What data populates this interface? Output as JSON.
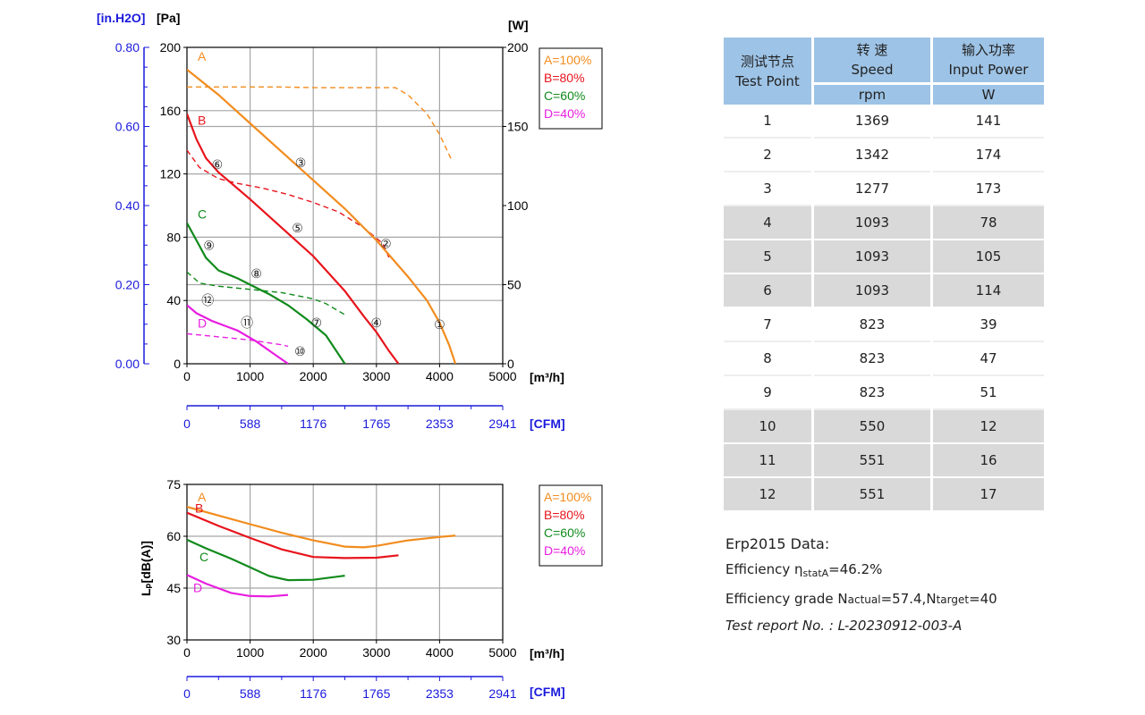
{
  "chart_data": [
    {
      "type": "line",
      "title": "",
      "xlabel": "[m³/h]",
      "x_ticks": [
        "0",
        "1000",
        "2000",
        "3000",
        "4000",
        "5000"
      ],
      "xlim": [
        0,
        5000
      ],
      "x2label": "[CFM]",
      "x2_ticks": [
        "0",
        "588",
        "1176",
        "1765",
        "2353",
        "2941"
      ],
      "ylabel_left": "[Pa]",
      "y_ticks": [
        "0",
        "40",
        "80",
        "120",
        "160",
        "200"
      ],
      "ylim": [
        0,
        200
      ],
      "ylabel_left2": "[in.H2O]",
      "y2_ticks": [
        "0.00",
        "0.20",
        "0.40",
        "0.60",
        "0.80"
      ],
      "ylabel_right": "[W]",
      "yr_ticks": [
        "0",
        "50",
        "100",
        "150",
        "200"
      ],
      "yr_lim": [
        0,
        200
      ],
      "grid": true,
      "legend_position": "top-right",
      "legend": [
        "A=100%",
        "B=80%",
        "C=60%",
        "D=40%"
      ],
      "series": [
        {
          "name": "A=100%",
          "label": "A",
          "color": "#f28c1e",
          "kind": "pressure",
          "x": [
            0,
            500,
            1000,
            1500,
            2000,
            2500,
            3000,
            3500,
            3800,
            4000,
            4150,
            4250
          ],
          "y": [
            186,
            170,
            152,
            134,
            116,
            98,
            78,
            55,
            40,
            26,
            12,
            0
          ]
        },
        {
          "name": "B=80%",
          "label": "B",
          "color": "#e8141c",
          "kind": "pressure",
          "x": [
            0,
            150,
            300,
            500,
            1000,
            1500,
            2000,
            2500,
            2800,
            3000,
            3200,
            3350
          ],
          "y": [
            158,
            142,
            130,
            121,
            104,
            86,
            68,
            46,
            30,
            20,
            8,
            0
          ]
        },
        {
          "name": "C=60%",
          "label": "C",
          "color": "#118a1c",
          "kind": "pressure",
          "x": [
            0,
            150,
            300,
            500,
            800,
            1000,
            1300,
            1600,
            1900,
            2200,
            2500
          ],
          "y": [
            89,
            78,
            67,
            59,
            54,
            50,
            44,
            37,
            28,
            18,
            0
          ]
        },
        {
          "name": "D=40%",
          "label": "D",
          "color": "#e81ee0",
          "kind": "pressure",
          "x": [
            0,
            150,
            400,
            800,
            1100,
            1350,
            1600
          ],
          "y": [
            37,
            32,
            27,
            21,
            14,
            7,
            0
          ]
        },
        {
          "name": "A power",
          "color": "#f28c1e",
          "kind": "power",
          "x": [
            0,
            500,
            1000,
            1500,
            2000,
            2500,
            3000,
            3300,
            3500,
            3800,
            4000,
            4200
          ],
          "y": [
            175,
            175,
            175,
            175,
            174.5,
            174.5,
            174.5,
            174.5,
            170,
            158,
            145,
            128
          ]
        },
        {
          "name": "B power",
          "color": "#e8141c",
          "kind": "power",
          "x": [
            0,
            200,
            500,
            800,
            1200,
            1600,
            2000,
            2400,
            2800,
            3100,
            3200
          ],
          "y": [
            135,
            124,
            117,
            114,
            111,
            107,
            102,
            96,
            86,
            76,
            67
          ]
        },
        {
          "name": "C power",
          "color": "#118a1c",
          "kind": "power",
          "x": [
            0,
            200,
            500,
            1000,
            1500,
            2000,
            2200,
            2500
          ],
          "y": [
            58,
            51,
            49,
            47,
            45,
            41,
            38,
            31
          ]
        },
        {
          "name": "D power",
          "color": "#e81ee0",
          "kind": "power",
          "x": [
            0,
            500,
            1000,
            1500,
            1600
          ],
          "y": [
            19,
            17,
            15,
            12,
            11
          ]
        }
      ],
      "points": [
        {
          "label": "①",
          "x": 4000,
          "y": 25
        },
        {
          "label": "②",
          "x": 3150,
          "y": 76
        },
        {
          "label": "③",
          "x": 1800,
          "y": 127
        },
        {
          "label": "④",
          "x": 3000,
          "y": 26
        },
        {
          "label": "⑤",
          "x": 1750,
          "y": 86
        },
        {
          "label": "⑥",
          "x": 480,
          "y": 126
        },
        {
          "label": "⑦",
          "x": 2050,
          "y": 26
        },
        {
          "label": "⑧",
          "x": 1100,
          "y": 57
        },
        {
          "label": "⑨",
          "x": 350,
          "y": 75
        },
        {
          "label": "⑩",
          "x": 1790,
          "y": 8
        },
        {
          "label": "⑪",
          "x": 950,
          "y": 26
        },
        {
          "label": "⑫",
          "x": 330,
          "y": 40
        }
      ]
    },
    {
      "type": "line",
      "title": "",
      "xlabel": "[m³/h]",
      "x_ticks": [
        "0",
        "1000",
        "2000",
        "3000",
        "4000",
        "5000"
      ],
      "xlim": [
        0,
        5000
      ],
      "x2label": "[CFM]",
      "x2_ticks": [
        "0",
        "588",
        "1176",
        "1765",
        "2353",
        "2941"
      ],
      "ylabel": "Lₚ[dB(A)]",
      "y_ticks": [
        "30",
        "45",
        "60",
        "75"
      ],
      "ylim": [
        30,
        75
      ],
      "grid": true,
      "legend_position": "top-right",
      "legend": [
        "A=100%",
        "B=80%",
        "C=60%",
        "D=40%"
      ],
      "series": [
        {
          "name": "A=100%",
          "label": "A",
          "color": "#f28c1e",
          "x": [
            0,
            500,
            1000,
            1500,
            2000,
            2500,
            2800,
            3000,
            3500,
            4000,
            4250
          ],
          "y": [
            68.5,
            66,
            63.5,
            61,
            58.8,
            57,
            56.8,
            57.2,
            58.8,
            59.8,
            60.2
          ]
        },
        {
          "name": "B=80%",
          "label": "B",
          "color": "#e8141c",
          "x": [
            0,
            500,
            1000,
            1500,
            2000,
            2500,
            3000,
            3350
          ],
          "y": [
            66.8,
            63,
            59.5,
            56.2,
            54,
            53.7,
            53.8,
            54.5
          ]
        },
        {
          "name": "C=60%",
          "label": "C",
          "color": "#118a1c",
          "x": [
            0,
            300,
            700,
            1000,
            1300,
            1600,
            2000,
            2500
          ],
          "y": [
            59,
            56.5,
            53.5,
            51,
            48.5,
            47.3,
            47.4,
            48.6
          ]
        },
        {
          "name": "D=40%",
          "label": "D",
          "color": "#e81ee0",
          "x": [
            0,
            300,
            700,
            1000,
            1300,
            1600
          ],
          "y": [
            48.8,
            46.3,
            43.6,
            42.7,
            42.6,
            43
          ]
        }
      ]
    }
  ],
  "table": {
    "headers": [
      {
        "cn": "测试节点",
        "en": "Test Point",
        "unit": ""
      },
      {
        "cn": "转 速",
        "en": "Speed",
        "unit": "rpm"
      },
      {
        "cn": "输入功率",
        "en": "Input Power",
        "unit": "W"
      }
    ],
    "rows": [
      {
        "point": "1",
        "speed": "1369",
        "power": "141"
      },
      {
        "point": "2",
        "speed": "1342",
        "power": "174"
      },
      {
        "point": "3",
        "speed": "1277",
        "power": "173"
      },
      {
        "point": "4",
        "speed": "1093",
        "power": "78"
      },
      {
        "point": "5",
        "speed": "1093",
        "power": "105"
      },
      {
        "point": "6",
        "speed": "1093",
        "power": "114"
      },
      {
        "point": "7",
        "speed": "823",
        "power": "39"
      },
      {
        "point": "8",
        "speed": "823",
        "power": "47"
      },
      {
        "point": "9",
        "speed": "823",
        "power": "51"
      },
      {
        "point": "10",
        "speed": "550",
        "power": "12"
      },
      {
        "point": "11",
        "speed": "551",
        "power": "16"
      },
      {
        "point": "12",
        "speed": "551",
        "power": "17"
      }
    ]
  },
  "erp": {
    "title": "Erp2015  Data:",
    "eff_label": "Efficiency η",
    "eff_sub": "statA",
    "eff_value": "=46.2%",
    "grade_label": "Efficiency grade  N",
    "grade_sub1": "actual",
    "grade_val1": "=57.4,N",
    "grade_sub2": "target",
    "grade_val2": "=40",
    "report": "Test report No.  : L-20230912-003-A"
  }
}
